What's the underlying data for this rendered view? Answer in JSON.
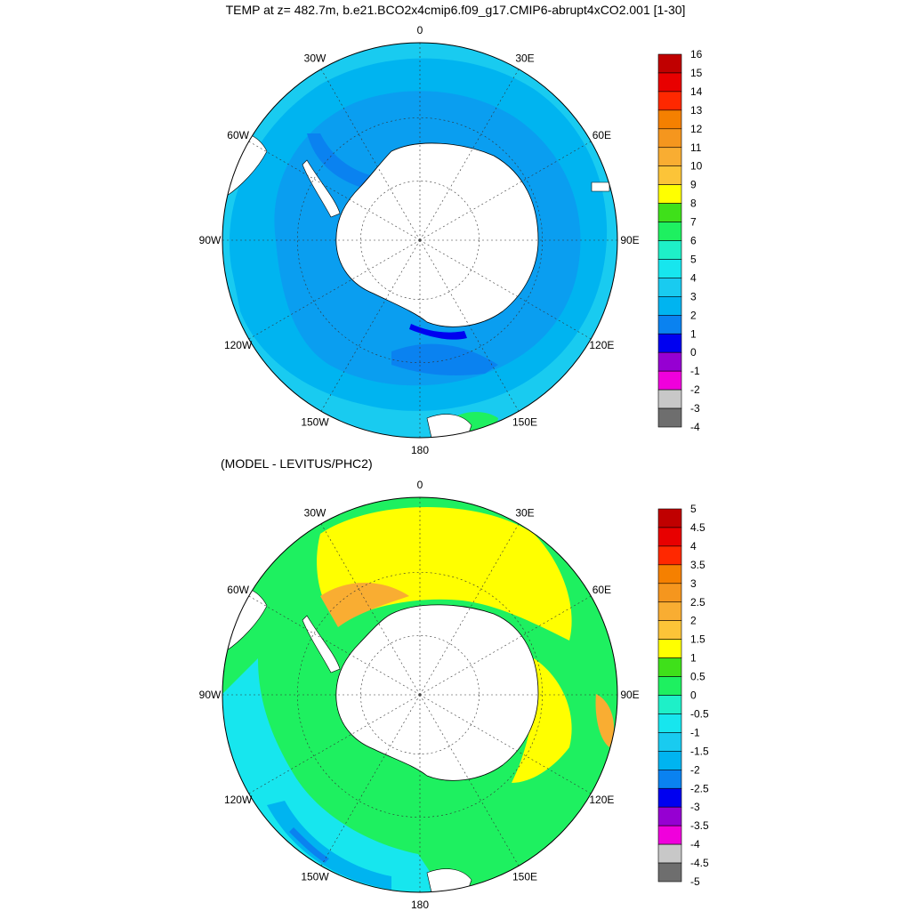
{
  "title": "TEMP at z= 482.7m, b.e21.BCO2x4cmip6.f09_g17.CMIP6-abrupt4xCO2.001 [1-30]",
  "subtitle": "(MODEL - LEVITUS/PHC2)",
  "chart_data": [
    {
      "type": "heatmap",
      "projection": "south polar stereographic",
      "title": "TEMP at z= 482.7m, b.e21.BCO2x4cmip6.f09_g17.CMIP6-abrupt4xCO2.001 [1-30]",
      "longitude_labels": [
        "0",
        "30E",
        "60E",
        "90E",
        "120E",
        "150E",
        "180",
        "150W",
        "120W",
        "90W",
        "60W",
        "30W"
      ],
      "colorbar": {
        "tick_labels": [
          "16",
          "15",
          "14",
          "13",
          "12",
          "11",
          "10",
          "9",
          "8",
          "7",
          "6",
          "5",
          "4",
          "3",
          "2",
          "1",
          "0",
          "-1",
          "-2",
          "-3",
          "-4"
        ],
        "colors": [
          "#c00000",
          "#e80000",
          "#ff2800",
          "#f58000",
          "#f5961e",
          "#f9ad32",
          "#fcc438",
          "#ffff00",
          "#3fe01a",
          "#1ef060",
          "#1ef0c8",
          "#17e6ee",
          "#19cbf0",
          "#00b4f0",
          "#0a82f0",
          "#0000f0",
          "#9600d2",
          "#f000dc",
          "#c8c8c8",
          "#6e6e6e"
        ]
      },
      "regions": {
        "antarctic_shelf": 1.5,
        "antarctic_zone": 2.5,
        "subantarctic": 3.5,
        "northern_rim": 4.5,
        "east_indian_pocket": 7.5
      }
    },
    {
      "type": "heatmap",
      "projection": "south polar stereographic",
      "title": "(MODEL - LEVITUS/PHC2)",
      "longitude_labels": [
        "0",
        "30E",
        "60E",
        "90E",
        "120E",
        "150E",
        "180",
        "150W",
        "120W",
        "90W",
        "60W",
        "30W"
      ],
      "colorbar": {
        "tick_labels": [
          "5",
          "4.5",
          "4",
          "3.5",
          "3",
          "2.5",
          "2",
          "1.5",
          "1",
          "0.5",
          "0",
          "-0.5",
          "-1",
          "-1.5",
          "-2",
          "-2.5",
          "-3",
          "-3.5",
          "-4",
          "-4.5",
          "-5"
        ],
        "colors": [
          "#c00000",
          "#e80000",
          "#ff2800",
          "#f58000",
          "#f5961e",
          "#f9ad32",
          "#fcc438",
          "#ffff00",
          "#3fe01a",
          "#1ef060",
          "#1ef0c8",
          "#17e6ee",
          "#19cbf0",
          "#00b4f0",
          "#0a82f0",
          "#0000f0",
          "#9600d2",
          "#f000dc",
          "#c8c8c8",
          "#6e6e6e"
        ]
      },
      "regions": {
        "weddell_sector": 2.25,
        "indian_sector": 1.25,
        "circumpolar_belt": 0.75,
        "pacific_sector": 0.25,
        "southeast_pacific": -1.25,
        "north_pacific_rim": -2.25
      }
    }
  ]
}
